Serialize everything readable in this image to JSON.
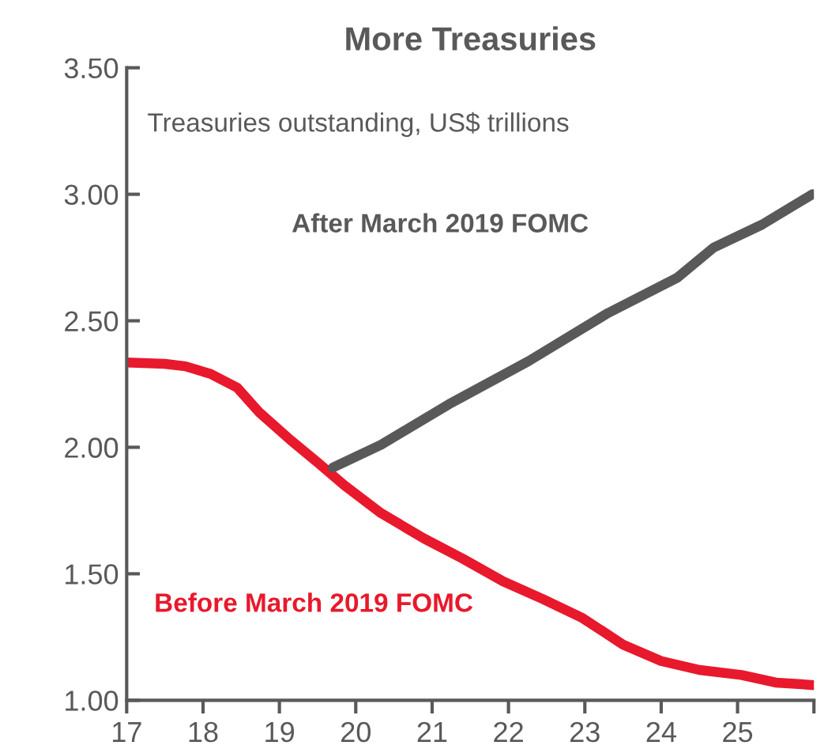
{
  "chart_data": {
    "type": "line",
    "title": "More Treasuries",
    "subtitle": "Treasuries outstanding, US$ trillions",
    "xlim": [
      17,
      26
    ],
    "xticks": [
      17,
      18,
      19,
      20,
      21,
      22,
      23,
      24,
      25,
      {
        "value": 26,
        "label": null
      }
    ],
    "ylim": [
      1.0,
      3.5
    ],
    "yticks": [
      {
        "value": 1.0,
        "label": "1.00"
      },
      {
        "value": 1.5,
        "label": "1.50"
      },
      {
        "value": 2.0,
        "label": "2.00"
      },
      {
        "value": 2.5,
        "label": "2.50"
      },
      {
        "value": 3.0,
        "label": "3.00"
      },
      {
        "value": 3.5,
        "label": "3.50"
      }
    ],
    "grid": false,
    "legend": false,
    "marker": "none",
    "line_style": "solid",
    "series": [
      {
        "name": "Before March 2019 FOMC",
        "color": "#e8192c",
        "x": [
          17.0,
          17.5,
          17.77,
          18.1,
          18.45,
          18.73,
          19.14,
          19.5,
          19.85,
          20.33,
          20.89,
          21.4,
          21.93,
          22.45,
          22.97,
          23.5,
          24.0,
          24.5,
          25.05,
          25.5,
          26.0
        ],
        "values": [
          2.335,
          2.33,
          2.32,
          2.29,
          2.235,
          2.14,
          2.03,
          1.94,
          1.85,
          1.74,
          1.64,
          1.56,
          1.47,
          1.4,
          1.325,
          1.22,
          1.155,
          1.12,
          1.1,
          1.07,
          1.06
        ]
      },
      {
        "name": "After March 2019 FOMC",
        "color": "#595959",
        "x": [
          19.7,
          20.33,
          21.22,
          22.26,
          23.3,
          24.21,
          24.69,
          25.32,
          25.98
        ],
        "values": [
          1.92,
          2.01,
          2.17,
          2.34,
          2.53,
          2.67,
          2.79,
          2.88,
          3.0
        ]
      }
    ]
  }
}
